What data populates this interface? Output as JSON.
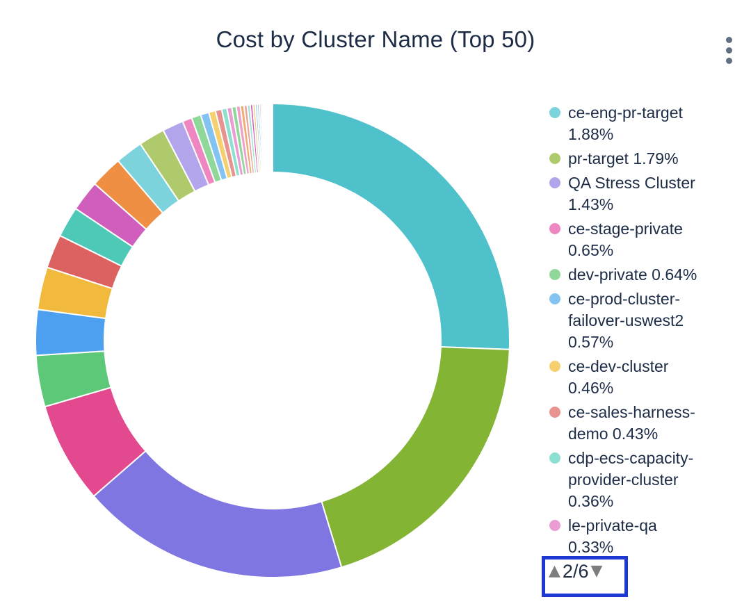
{
  "header": {
    "title": "Cost by Cluster Name (Top 50)",
    "title_color": "#1d2c46",
    "menu_icon": "kebab-vertical-ellipsis"
  },
  "chart_data": {
    "type": "pie",
    "subtype": "donut",
    "title": "Cost by Cluster Name (Top 50)",
    "legend_position": "right",
    "start_angle_deg": 90,
    "direction": "clockwise",
    "inner_radius_ratio": 0.71,
    "slices": [
      {
        "label": "",
        "value": 25.6,
        "color": "#4fc1cb"
      },
      {
        "label": "",
        "value": 19.7,
        "color": "#84b434"
      },
      {
        "label": "",
        "value": 18.3,
        "color": "#8076e1"
      },
      {
        "label": "",
        "value": 6.9,
        "color": "#e3498f"
      },
      {
        "label": "",
        "value": 3.5,
        "color": "#5cc878"
      },
      {
        "label": "",
        "value": 3.1,
        "color": "#4d9ff0"
      },
      {
        "label": "",
        "value": 2.9,
        "color": "#f1ba3d"
      },
      {
        "label": "",
        "value": 2.3,
        "color": "#dc6161"
      },
      {
        "label": "",
        "value": 2.1,
        "color": "#4ec9b8"
      },
      {
        "label": "",
        "value": 2.1,
        "color": "#cf5ebc"
      },
      {
        "label": "",
        "value": 2.2,
        "color": "#ee8f43"
      },
      {
        "label": "ce-eng-pr-target",
        "value": 1.88,
        "color": "#7cd3dc"
      },
      {
        "label": "pr-target",
        "value": 1.79,
        "color": "#aeca6c"
      },
      {
        "label": "QA Stress Cluster",
        "value": 1.43,
        "color": "#b3a5ec"
      },
      {
        "label": "ce-stage-private",
        "value": 0.65,
        "color": "#ee86c2"
      },
      {
        "label": "dev-private",
        "value": 0.64,
        "color": "#90d89a"
      },
      {
        "label": "ce-prod-cluster-failover-uswest2",
        "value": 0.57,
        "color": "#83c3f2"
      },
      {
        "label": "ce-dev-cluster",
        "value": 0.46,
        "color": "#f6d06e"
      },
      {
        "label": "ce-sales-harness-demo",
        "value": 0.43,
        "color": "#e89390"
      },
      {
        "label": "cdp-ecs-capacity-provider-cluster",
        "value": 0.36,
        "color": "#8ce0d0"
      },
      {
        "label": "le-private-qa",
        "value": 0.33,
        "color": "#ea9cd3"
      },
      {
        "label": "",
        "value": 0.3,
        "color": "#90d89a"
      },
      {
        "label": "",
        "value": 0.28,
        "color": "#ef9fca"
      },
      {
        "label": "",
        "value": 0.25,
        "color": "#f0ab6e"
      },
      {
        "label": "",
        "value": 0.22,
        "color": "#eda4a0"
      },
      {
        "label": "",
        "value": 0.2,
        "color": "#9fe3d6"
      },
      {
        "label": "",
        "value": 0.18,
        "color": "#d65cb8"
      },
      {
        "label": "",
        "value": 0.16,
        "color": "#f2c678"
      },
      {
        "label": "",
        "value": 0.14,
        "color": "#8ac4f0"
      },
      {
        "label": "",
        "value": 0.13,
        "color": "#66ccc4"
      },
      {
        "label": "",
        "value": 0.12,
        "color": "#f0a8d2"
      },
      {
        "label": "",
        "value": 0.1,
        "color": "#1d6e64"
      },
      {
        "label": "",
        "value": 0.09,
        "color": "#29424e"
      },
      {
        "label": "",
        "value": 0.08,
        "color": "#aeca6e"
      },
      {
        "label": "",
        "value": 0.08,
        "color": "#9a8fe8"
      },
      {
        "label": "",
        "value": 0.07,
        "color": "#6f63d8"
      },
      {
        "label": "",
        "value": 0.06,
        "color": "#b3a5ec"
      }
    ]
  },
  "legend": {
    "items": [
      {
        "lines": [
          "ce-eng-pr-target",
          "1.88%"
        ],
        "color": "#7cd3dc"
      },
      {
        "lines": [
          "pr-target 1.79%"
        ],
        "color": "#aeca6c"
      },
      {
        "lines": [
          "QA Stress Cluster",
          "1.43%"
        ],
        "color": "#b3a5ec"
      },
      {
        "lines": [
          "ce-stage-private",
          "0.65%"
        ],
        "color": "#ee86c2"
      },
      {
        "lines": [
          "dev-private 0.64%"
        ],
        "color": "#90d89a"
      },
      {
        "lines": [
          "ce-prod-cluster-",
          "failover-uswest2",
          "0.57%"
        ],
        "color": "#83c3f2"
      },
      {
        "lines": [
          "ce-dev-cluster",
          "0.46%"
        ],
        "color": "#f6d06e"
      },
      {
        "lines": [
          "ce-sales-harness-",
          "demo 0.43%"
        ],
        "color": "#e89390"
      },
      {
        "lines": [
          "cdp-ecs-capacity-",
          "provider-cluster",
          "0.36%"
        ],
        "color": "#8ce0d0"
      },
      {
        "lines": [
          "le-private-qa",
          "0.33%"
        ],
        "color": "#ea9cd3"
      }
    ],
    "pagination": {
      "up_icon": "▲",
      "label": "2/6",
      "down_icon": "▼",
      "highlight_color": "#1e38d4",
      "arrow_color": "#7d7d7d"
    }
  }
}
